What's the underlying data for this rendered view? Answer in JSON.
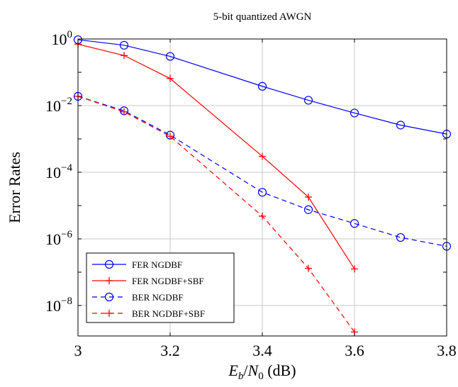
{
  "chart_data": {
    "type": "line",
    "title": "5-bit quantized AWGN",
    "xlabel": "E_b/N_0 (dB)",
    "xlabel_parts": {
      "E": "E",
      "b": "b",
      "slash": "/",
      "N": "N",
      "zero": "0",
      "unit": " (dB)"
    },
    "ylabel": "Error Rates",
    "xlim": [
      3.0,
      3.8
    ],
    "ylim": [
      1e-09,
      1.6
    ],
    "yscale": "log",
    "grid": true,
    "legend_position": "bottom-left",
    "x_ticks": [
      "3",
      "3.2",
      "3.4",
      "3.6",
      "3.8"
    ],
    "y_ticks": [
      {
        "base": "10",
        "exp": "0"
      },
      {
        "base": "10",
        "exp": "−2"
      },
      {
        "base": "10",
        "exp": "−4"
      },
      {
        "base": "10",
        "exp": "−6"
      },
      {
        "base": "10",
        "exp": "−8"
      }
    ],
    "series": [
      {
        "name": "FER NGDBF",
        "color": "#0000ff",
        "dash": "solid",
        "marker": "circle",
        "x": [
          3.0,
          3.1,
          3.2,
          3.4,
          3.5,
          3.6,
          3.7,
          3.8
        ],
        "y": [
          0.95,
          0.65,
          0.3,
          0.038,
          0.0145,
          0.006,
          0.0026,
          0.0014
        ]
      },
      {
        "name": "FER NGDBF+SBF",
        "color": "#ff0000",
        "dash": "solid",
        "marker": "plus",
        "x": [
          3.0,
          3.1,
          3.2,
          3.4,
          3.5,
          3.6
        ],
        "y": [
          0.7,
          0.32,
          0.065,
          0.0003,
          1.8e-05,
          1.25e-07
        ]
      },
      {
        "name": "BER NGDBF",
        "color": "#0000ff",
        "dash": "dashed",
        "marker": "circle",
        "x": [
          3.0,
          3.1,
          3.2,
          3.4,
          3.5,
          3.6,
          3.7,
          3.8
        ],
        "y": [
          0.019,
          0.007,
          0.0013,
          2.5e-05,
          7.5e-06,
          2.9e-06,
          1.1e-06,
          6e-07
        ]
      },
      {
        "name": "BER NGDBF+SBF",
        "color": "#ff0000",
        "dash": "dashed",
        "marker": "plus",
        "x": [
          3.0,
          3.1,
          3.2,
          3.4,
          3.5,
          3.6
        ],
        "y": [
          0.019,
          0.0065,
          0.0012,
          4.8e-06,
          1.3e-07,
          1.6e-09
        ]
      }
    ]
  }
}
